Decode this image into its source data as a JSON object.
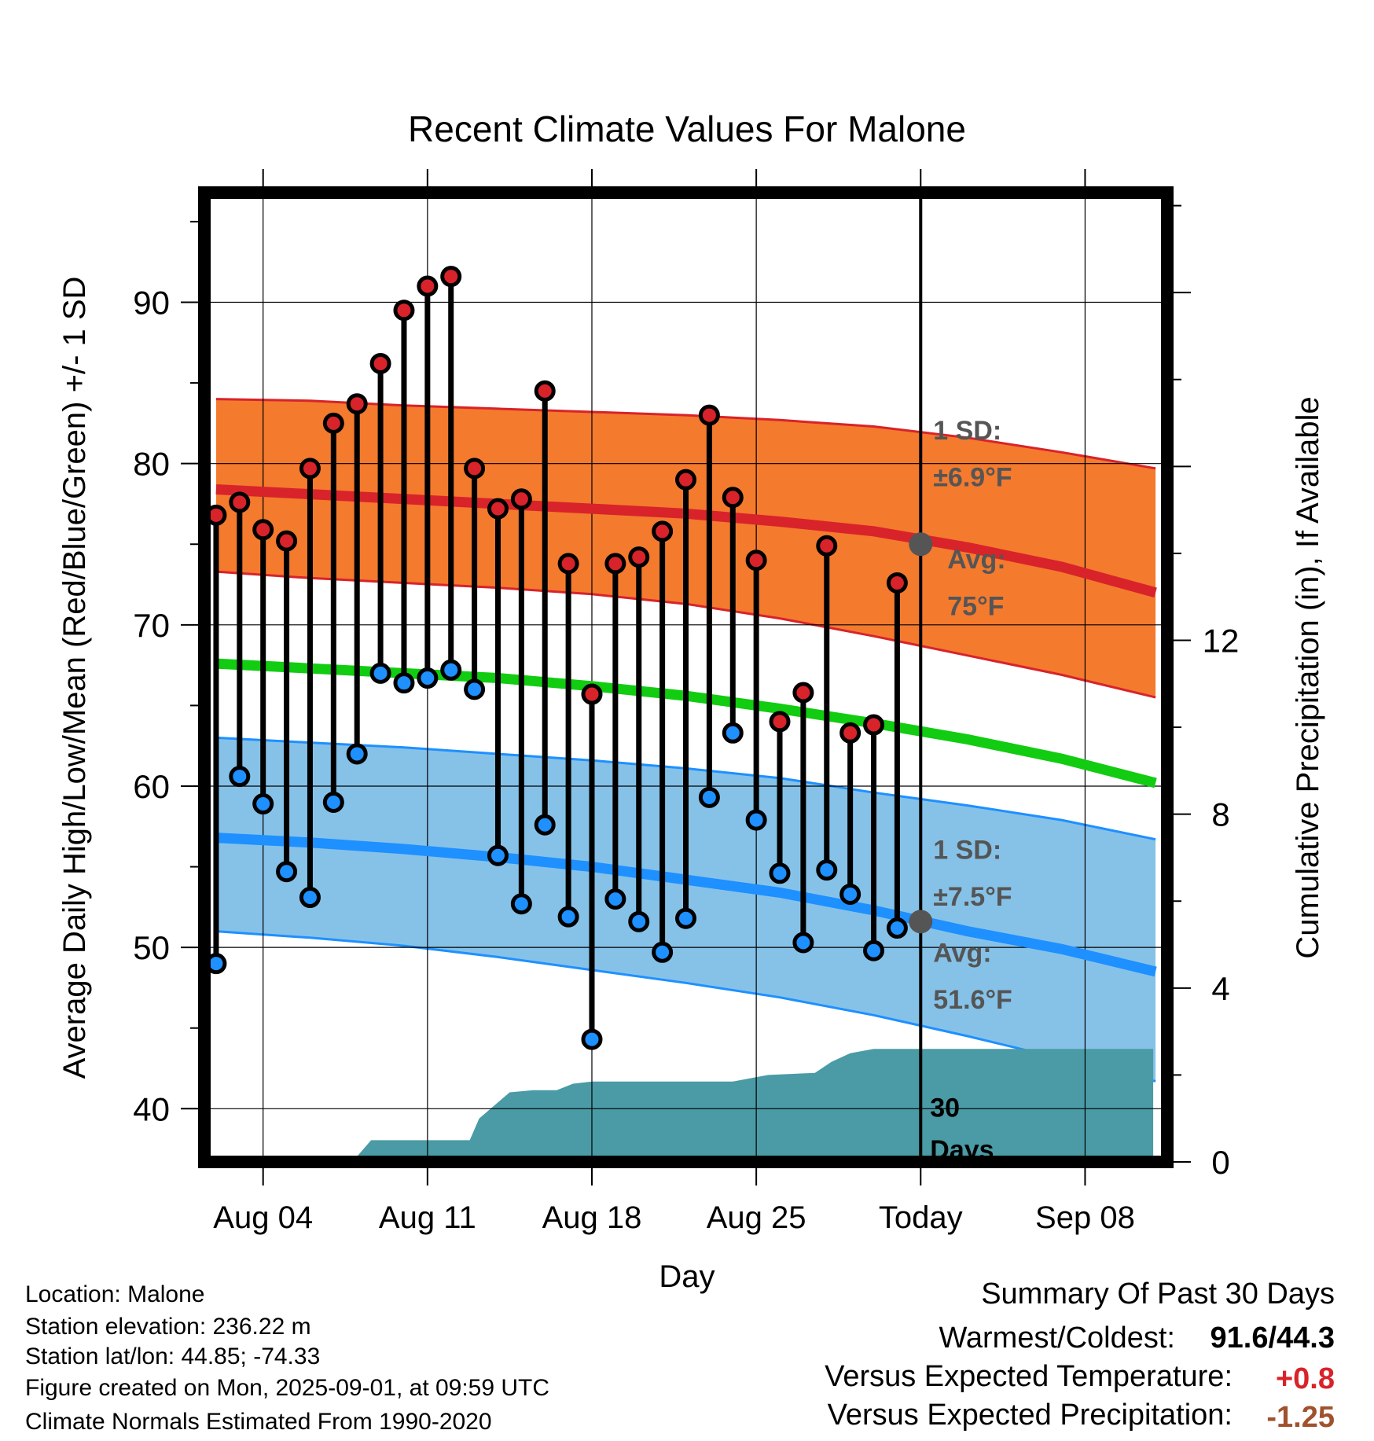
{
  "colors": {
    "high_band": "#f47a2e",
    "high_band_edge": "#d8232a",
    "high_avg": "#d8232a",
    "low_band": "#86c2e8",
    "low_band_edge": "#1e90ff",
    "low_avg": "#1e90ff",
    "mean_line": "#11cc11",
    "precip_fill": "#4a9ba5",
    "high_dot": "#d8232a",
    "low_dot": "#1e90ff",
    "marker": "#555555",
    "annot": "#555555",
    "temp_pos": "#d8232a",
    "precip_neg": "#a0522d"
  },
  "chart_data": {
    "type": "line",
    "title": "Recent Climate Values For Malone",
    "xlabel": "Day",
    "ylabel": "Average Daily High/Low/Mean (Red/Blue/Green) +/- 1 SD",
    "ylabel_right": "Cumulative Precipitation (in), If Available",
    "xlim": [
      0.5,
      41.5
    ],
    "ylim": [
      36.7,
      96.8
    ],
    "y2lim": [
      0,
      22.3
    ],
    "x_ticks": [
      {
        "x": 3,
        "label": "Aug 04"
      },
      {
        "x": 10,
        "label": "Aug 11"
      },
      {
        "x": 17,
        "label": "Aug 18"
      },
      {
        "x": 24,
        "label": "Aug 25"
      },
      {
        "x": 31,
        "label": "Today"
      },
      {
        "x": 38,
        "label": "Sep 08"
      }
    ],
    "y_ticks": [
      40,
      50,
      60,
      70,
      80,
      90
    ],
    "y2_ticks": [
      0,
      4,
      8,
      12
    ],
    "today_x": 31,
    "normals": {
      "x": [
        1,
        5,
        9,
        13,
        17,
        21,
        25,
        29,
        33,
        37,
        41
      ],
      "high_upper": [
        84.0,
        83.9,
        83.6,
        83.4,
        83.2,
        83.0,
        82.7,
        82.3,
        81.6,
        80.7,
        79.7
      ],
      "high_avg": [
        78.4,
        78.1,
        77.8,
        77.5,
        77.2,
        76.9,
        76.4,
        75.8,
        74.8,
        73.6,
        72.0
      ],
      "high_lower": [
        73.3,
        72.9,
        72.6,
        72.3,
        71.9,
        71.3,
        70.4,
        69.3,
        68.1,
        66.9,
        65.5
      ],
      "mean": [
        67.6,
        67.3,
        67.0,
        66.7,
        66.2,
        65.6,
        64.8,
        63.9,
        62.9,
        61.7,
        60.2
      ],
      "low_upper": [
        63.0,
        62.7,
        62.4,
        62.0,
        61.6,
        61.1,
        60.5,
        59.6,
        58.8,
        57.9,
        56.7
      ],
      "low_avg": [
        56.8,
        56.5,
        56.1,
        55.6,
        55.0,
        54.2,
        53.4,
        52.3,
        51.0,
        49.9,
        48.5
      ],
      "low_lower": [
        51.0,
        50.6,
        50.1,
        49.4,
        48.6,
        47.8,
        46.9,
        45.8,
        44.5,
        43.1,
        41.7
      ]
    },
    "daily": {
      "x": [
        1,
        2,
        3,
        4,
        5,
        6,
        7,
        8,
        9,
        10,
        11,
        12,
        13,
        14,
        15,
        16,
        17,
        18,
        19,
        20,
        21,
        22,
        23,
        24,
        25,
        26,
        27,
        28,
        29,
        30
      ],
      "high": [
        76.8,
        77.6,
        75.9,
        75.2,
        79.7,
        82.5,
        83.7,
        86.2,
        89.5,
        91.0,
        91.6,
        79.7,
        77.2,
        77.8,
        84.5,
        73.8,
        65.7,
        73.8,
        74.2,
        75.8,
        79.0,
        83.0,
        77.9,
        74.0,
        64.0,
        65.8,
        74.9,
        63.3,
        63.8,
        72.6
      ],
      "low": [
        49.0,
        60.6,
        58.9,
        54.7,
        53.1,
        59.0,
        62.0,
        67.0,
        66.4,
        66.7,
        67.2,
        66.0,
        55.7,
        52.7,
        57.6,
        51.9,
        44.3,
        53.0,
        51.6,
        49.7,
        51.8,
        59.3,
        63.3,
        57.9,
        54.6,
        50.3,
        54.8,
        53.3,
        49.8,
        51.2
      ]
    },
    "precip": {
      "x": [
        0.6,
        6.8,
        7.6,
        10.4,
        10.9,
        11.8,
        12.2,
        13.5,
        14.5,
        15.5,
        16.2,
        17.0,
        22.5,
        23.0,
        24.5,
        26.5,
        27.2,
        28.0,
        29.0,
        30.0,
        40.9
      ],
      "y": [
        0.0,
        0.0,
        0.5,
        0.5,
        0.5,
        0.5,
        1.0,
        1.6,
        1.65,
        1.65,
        1.8,
        1.85,
        1.85,
        1.85,
        2.0,
        2.05,
        2.3,
        2.5,
        2.6,
        2.6,
        2.6
      ]
    },
    "annotations": {
      "high_sd": "1 SD:",
      "high_sd_value": "±6.9°F",
      "high_avg_label": "Avg:",
      "high_avg_value": "75°F",
      "today_high_avg": 75.0,
      "low_sd": "1 SD:",
      "low_sd_value": "±7.5°F",
      "low_avg_label": "Avg:",
      "low_avg_value": "51.6°F",
      "today_low_avg": 51.6,
      "period_num": "30",
      "period_unit": "Days"
    }
  },
  "info": {
    "location": "Location: Malone",
    "elevation": "Station elevation: 236.22 m",
    "latlon": "Station lat/lon: 44.85; -74.33",
    "created": "Figure created on Mon, 2025-09-01, at 09:59 UTC",
    "normals": "Climate Normals Estimated From 1990-2020"
  },
  "summary": {
    "heading": "Summary Of Past 30 Days",
    "warm_cold_label": "Warmest/Coldest:",
    "warm_cold_value": "91.6/44.3",
    "temp_label": "Versus Expected Temperature:",
    "temp_value": "+0.8",
    "precip_label": "Versus Expected Precipitation:",
    "precip_value": "-1.25"
  }
}
